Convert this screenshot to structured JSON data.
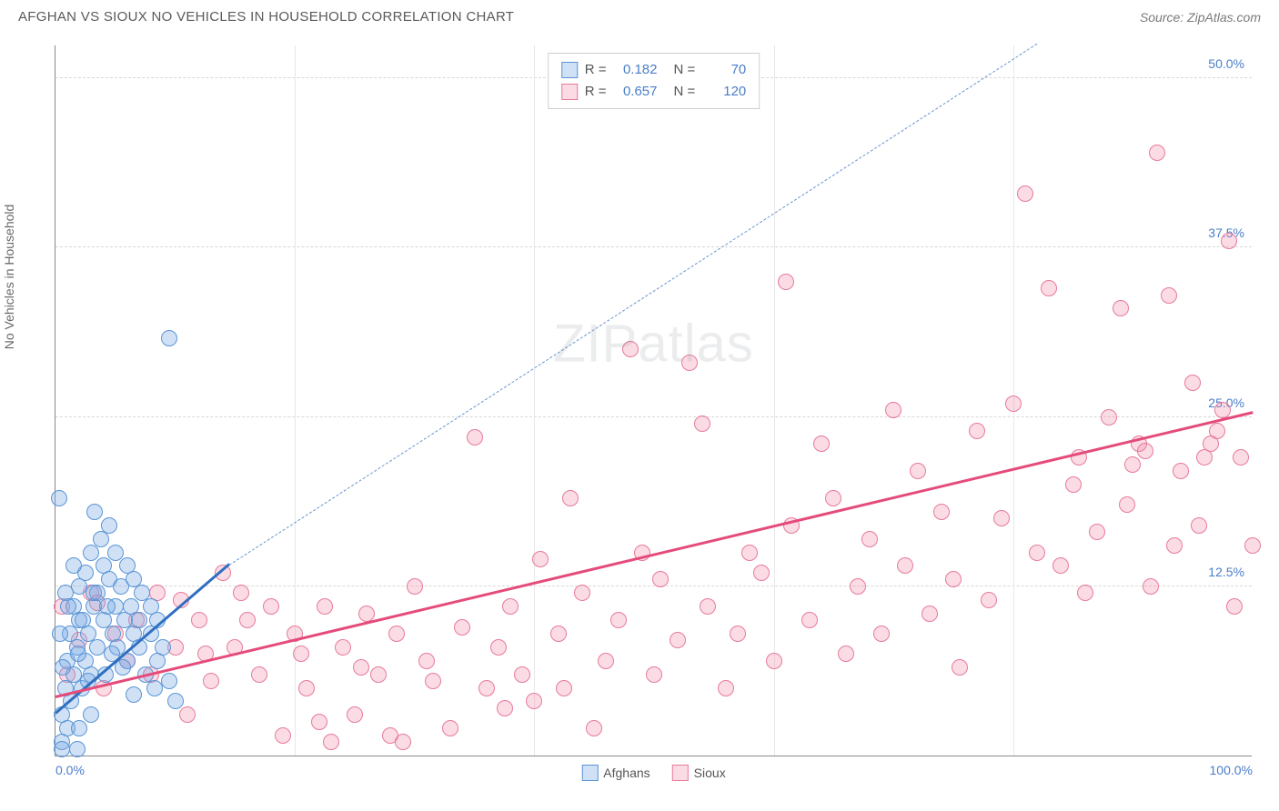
{
  "header": {
    "title": "AFGHAN VS SIOUX NO VEHICLES IN HOUSEHOLD CORRELATION CHART",
    "source": "Source: ZipAtlas.com"
  },
  "ylabel": "No Vehicles in Household",
  "watermark_a": "ZIP",
  "watermark_b": "atlas",
  "chart": {
    "type": "scatter",
    "background_color": "#ffffff",
    "grid_color": "#d8d8d8",
    "axis_color": "#888888",
    "tick_color": "#4a7ec9",
    "tick_fontsize": 14,
    "xlim": [
      0,
      100
    ],
    "ylim": [
      0,
      52.5
    ],
    "yticks": [
      12.5,
      25.0,
      37.5,
      50.0
    ],
    "ytick_labels": [
      "12.5%",
      "25.0%",
      "37.5%",
      "50.0%"
    ],
    "xticks_minor": [
      20,
      40,
      60,
      80
    ],
    "xtick_left": "0.0%",
    "xtick_right": "100.0%",
    "marker_radius": 9,
    "marker_stroke_width": 1.2,
    "series": [
      {
        "id": "afghans",
        "label": "Afghans",
        "fill_color": "rgba(120,170,230,0.35)",
        "stroke_color": "#5a95d6",
        "r_value": "0.182",
        "n_value": "70",
        "trend_solid": {
          "x1": 0,
          "y1": 3.0,
          "x2": 14.5,
          "y2": 14.0,
          "color": "#2f6fc0",
          "width": 3
        },
        "trend_dashed": {
          "x1": 14.5,
          "y1": 14.0,
          "x2": 82,
          "y2": 52.5,
          "color": "#6a95d0",
          "width": 1.5
        },
        "points": [
          [
            0.5,
            1
          ],
          [
            0.5,
            3
          ],
          [
            0.8,
            5
          ],
          [
            1,
            2
          ],
          [
            1,
            7
          ],
          [
            1.2,
            9
          ],
          [
            1.3,
            4
          ],
          [
            1.5,
            11
          ],
          [
            1.5,
            6
          ],
          [
            1.8,
            8
          ],
          [
            2,
            10
          ],
          [
            2,
            12.5
          ],
          [
            2.2,
            5
          ],
          [
            2.5,
            7
          ],
          [
            2.5,
            13.5
          ],
          [
            2.7,
            9
          ],
          [
            3,
            15
          ],
          [
            3,
            6
          ],
          [
            3.2,
            11
          ],
          [
            3.3,
            18
          ],
          [
            3.5,
            8
          ],
          [
            3.5,
            12
          ],
          [
            3.8,
            16
          ],
          [
            4,
            10
          ],
          [
            4,
            14
          ],
          [
            4.2,
            6
          ],
          [
            4.5,
            13
          ],
          [
            4.5,
            17
          ],
          [
            4.8,
            9
          ],
          [
            5,
            11
          ],
          [
            5,
            15
          ],
          [
            5.2,
            8
          ],
          [
            5.5,
            12.5
          ],
          [
            5.8,
            10
          ],
          [
            6,
            14
          ],
          [
            6,
            7
          ],
          [
            6.3,
            11
          ],
          [
            6.5,
            9
          ],
          [
            6.5,
            13
          ],
          [
            7,
            10
          ],
          [
            7,
            8
          ],
          [
            7.2,
            12
          ],
          [
            7.5,
            6
          ],
          [
            8,
            11
          ],
          [
            8,
            9
          ],
          [
            8.5,
            10
          ],
          [
            8.5,
            7
          ],
          [
            9,
            8
          ],
          [
            9.5,
            5.5
          ],
          [
            10,
            4
          ],
          [
            0.3,
            19
          ],
          [
            0.5,
            0.5
          ],
          [
            2,
            2
          ],
          [
            3,
            3
          ],
          [
            1.8,
            0.5
          ],
          [
            0.8,
            12
          ],
          [
            1.5,
            14
          ],
          [
            2.3,
            10
          ],
          [
            3.2,
            12
          ],
          [
            4.3,
            11
          ],
          [
            0.4,
            9
          ],
          [
            0.6,
            6.5
          ],
          [
            1.1,
            11
          ],
          [
            1.9,
            7.5
          ],
          [
            2.7,
            5.5
          ],
          [
            4.7,
            7.5
          ],
          [
            5.6,
            6.5
          ],
          [
            8.3,
            5
          ],
          [
            6.5,
            4.5
          ],
          [
            9.5,
            30.8
          ]
        ]
      },
      {
        "id": "sioux",
        "label": "Sioux",
        "fill_color": "rgba(240,130,160,0.28)",
        "stroke_color": "#e77a9b",
        "r_value": "0.657",
        "n_value": "120",
        "trend_solid": {
          "x1": 0,
          "y1": 4.2,
          "x2": 100,
          "y2": 25.2,
          "color": "#e54b7a",
          "width": 3
        },
        "trend_dashed": null,
        "points": [
          [
            0.5,
            11
          ],
          [
            1,
            6
          ],
          [
            2,
            8.5
          ],
          [
            3,
            12
          ],
          [
            4,
            5
          ],
          [
            5,
            9
          ],
          [
            6,
            7
          ],
          [
            8,
            6
          ],
          [
            8.5,
            12
          ],
          [
            10,
            8
          ],
          [
            11,
            3
          ],
          [
            12,
            10
          ],
          [
            13,
            5.5
          ],
          [
            14,
            13.5
          ],
          [
            15,
            8
          ],
          [
            15.5,
            12
          ],
          [
            17,
            6
          ],
          [
            18,
            11
          ],
          [
            19,
            1.5
          ],
          [
            20,
            9
          ],
          [
            21,
            5
          ],
          [
            22,
            2.5
          ],
          [
            22.5,
            11
          ],
          [
            23,
            1
          ],
          [
            24,
            8
          ],
          [
            25,
            3
          ],
          [
            26,
            10.5
          ],
          [
            27,
            6
          ],
          [
            28,
            1.5
          ],
          [
            28.5,
            9
          ],
          [
            30,
            12.5
          ],
          [
            31,
            7
          ],
          [
            33,
            2
          ],
          [
            34,
            9.5
          ],
          [
            35,
            23.5
          ],
          [
            36,
            5
          ],
          [
            37,
            8
          ],
          [
            38,
            11
          ],
          [
            39,
            6
          ],
          [
            40,
            4
          ],
          [
            40.5,
            14.5
          ],
          [
            42,
            9
          ],
          [
            42.5,
            5
          ],
          [
            43,
            19
          ],
          [
            44,
            12
          ],
          [
            45,
            2
          ],
          [
            46,
            7
          ],
          [
            47,
            10
          ],
          [
            48,
            30
          ],
          [
            49,
            15
          ],
          [
            50,
            6
          ],
          [
            50.5,
            13
          ],
          [
            52,
            8.5
          ],
          [
            53,
            29
          ],
          [
            54,
            24.5
          ],
          [
            54.5,
            11
          ],
          [
            56,
            5
          ],
          [
            57,
            9
          ],
          [
            58,
            15
          ],
          [
            59,
            13.5
          ],
          [
            60,
            7
          ],
          [
            61,
            35
          ],
          [
            61.5,
            17
          ],
          [
            63,
            10
          ],
          [
            64,
            23
          ],
          [
            65,
            19
          ],
          [
            66,
            7.5
          ],
          [
            67,
            12.5
          ],
          [
            68,
            16
          ],
          [
            69,
            9
          ],
          [
            70,
            25.5
          ],
          [
            71,
            14
          ],
          [
            72,
            21
          ],
          [
            73,
            10.5
          ],
          [
            74,
            18
          ],
          [
            75,
            13
          ],
          [
            75.5,
            6.5
          ],
          [
            77,
            24
          ],
          [
            78,
            11.5
          ],
          [
            79,
            17.5
          ],
          [
            80,
            26
          ],
          [
            81,
            41.5
          ],
          [
            82,
            15
          ],
          [
            83,
            34.5
          ],
          [
            84,
            14
          ],
          [
            85,
            20
          ],
          [
            85.5,
            22
          ],
          [
            86,
            12
          ],
          [
            87,
            16.5
          ],
          [
            88,
            25
          ],
          [
            89,
            33
          ],
          [
            89.5,
            18.5
          ],
          [
            90,
            21.5
          ],
          [
            90.5,
            23
          ],
          [
            91,
            22.5
          ],
          [
            91.5,
            12.5
          ],
          [
            92,
            44.5
          ],
          [
            93,
            34
          ],
          [
            93.5,
            15.5
          ],
          [
            94,
            21
          ],
          [
            95,
            27.5
          ],
          [
            95.5,
            17
          ],
          [
            96,
            22
          ],
          [
            96.5,
            23
          ],
          [
            97,
            24
          ],
          [
            97.5,
            25.5
          ],
          [
            98,
            38
          ],
          [
            98.5,
            11
          ],
          [
            99,
            22
          ],
          [
            100,
            15.5
          ],
          [
            3.5,
            11.3
          ],
          [
            6.8,
            10
          ],
          [
            10.5,
            11.5
          ],
          [
            12.5,
            7.5
          ],
          [
            16,
            10
          ],
          [
            20.5,
            7.5
          ],
          [
            25.5,
            6.5
          ],
          [
            29,
            1
          ],
          [
            31.5,
            5.5
          ],
          [
            37.5,
            3.5
          ]
        ]
      }
    ]
  },
  "legend_top": {
    "r_label": "R =",
    "n_label": "N ="
  },
  "legend_bottom": {
    "items": [
      "Afghans",
      "Sioux"
    ]
  }
}
